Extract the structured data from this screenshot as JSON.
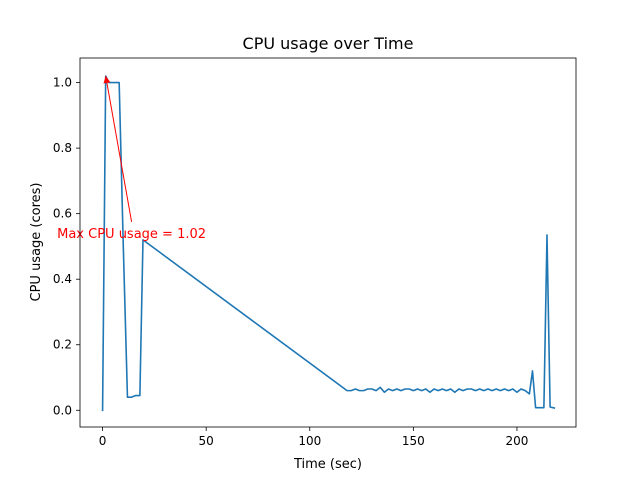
{
  "chart_data": {
    "type": "line",
    "title": "CPU usage over Time",
    "xlabel": "Time (sec)",
    "ylabel": "CPU usage (cores)",
    "xlim": [
      -10.9,
      228.5
    ],
    "ylim": [
      -0.051,
      1.075
    ],
    "xticks": [
      0,
      50,
      100,
      150,
      200
    ],
    "xtick_labels": [
      "0",
      "50",
      "100",
      "150",
      "200"
    ],
    "yticks": [
      0.0,
      0.2,
      0.4,
      0.6,
      0.8,
      1.0
    ],
    "ytick_labels": [
      "0.0",
      "0.2",
      "0.4",
      "0.6",
      "0.8",
      "1.0"
    ],
    "grid": false,
    "line_color": "#1f77b4",
    "annotation_color": "#ff0000",
    "series": [
      {
        "x": [
          0,
          1.5,
          3,
          4.5,
          6,
          8,
          10,
          12,
          14,
          16,
          18,
          19.5,
          118,
          120,
          122,
          124,
          126,
          128,
          130,
          132,
          134,
          136,
          138,
          140,
          142,
          144,
          146,
          148,
          150,
          152,
          154,
          156,
          158,
          160,
          162,
          164,
          166,
          168,
          170,
          172,
          174,
          176,
          178,
          180,
          182,
          184,
          186,
          188,
          190,
          192,
          194,
          196,
          198,
          200,
          202,
          204,
          206,
          207.5,
          209,
          211,
          213,
          214.5,
          216,
          218
        ],
        "y": [
          0.0,
          1.02,
          1.0,
          1.0,
          1.0,
          1.0,
          0.5,
          0.04,
          0.04,
          0.045,
          0.045,
          0.52,
          0.06,
          0.06,
          0.065,
          0.06,
          0.06,
          0.065,
          0.065,
          0.06,
          0.07,
          0.055,
          0.065,
          0.06,
          0.065,
          0.06,
          0.065,
          0.065,
          0.06,
          0.065,
          0.06,
          0.065,
          0.055,
          0.065,
          0.06,
          0.065,
          0.06,
          0.065,
          0.055,
          0.065,
          0.06,
          0.065,
          0.065,
          0.06,
          0.065,
          0.06,
          0.065,
          0.06,
          0.065,
          0.06,
          0.065,
          0.06,
          0.065,
          0.055,
          0.065,
          0.06,
          0.05,
          0.12,
          0.008,
          0.008,
          0.008,
          0.535,
          0.01,
          0.007
        ]
      }
    ],
    "annotation": {
      "text": "Max CPU usage = 1.02",
      "xy": [
        1.5,
        1.02
      ],
      "xytext": [
        14,
        0.575
      ]
    }
  }
}
